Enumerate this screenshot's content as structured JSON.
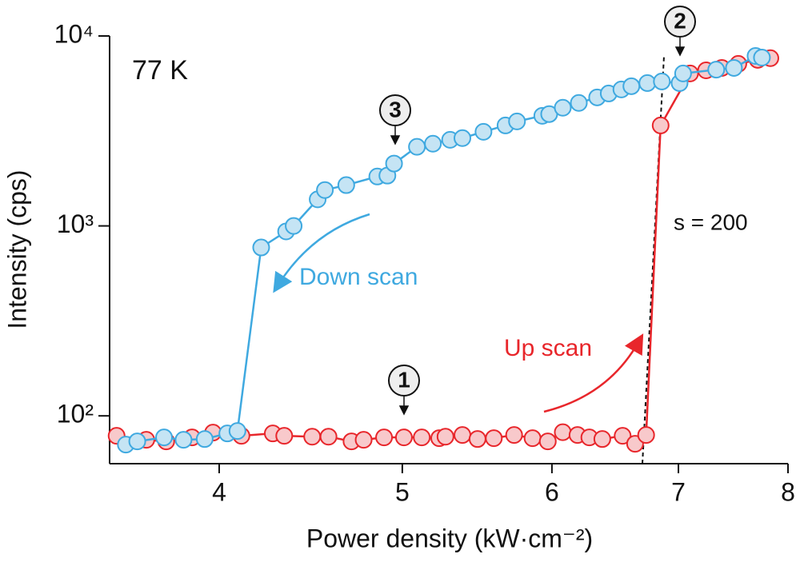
{
  "chart_data": {
    "type": "scatter",
    "x_label": "Power density (kW·cm⁻²)",
    "y_label": "Intensity (cps)",
    "xlog": true,
    "ylog": true,
    "xlim": [
      3.5,
      8
    ],
    "ylim": [
      56,
      10000
    ],
    "xticks": [
      4,
      5,
      6,
      7,
      8
    ],
    "yticks": [
      {
        "value": 100,
        "label": "10²"
      },
      {
        "value": 1000,
        "label": "10³"
      },
      {
        "value": 10000,
        "label": "10⁴"
      }
    ],
    "annotations": [
      "77 K",
      "s = 200",
      "1",
      "2",
      "3"
    ],
    "series": [
      {
        "name": "Up scan",
        "color": "#e8262b",
        "fill": "#f8c9cb",
        "x": [
          3.53,
          3.66,
          3.75,
          3.87,
          3.97,
          4.11,
          4.27,
          4.33,
          4.48,
          4.57,
          4.7,
          4.77,
          4.89,
          5.01,
          5.12,
          5.23,
          5.27,
          5.38,
          5.48,
          5.59,
          5.73,
          5.86,
          5.97,
          6.08,
          6.19,
          6.28,
          6.38,
          6.54,
          6.64,
          6.73,
          6.85,
          7.1,
          7.24,
          7.38,
          7.53,
          7.71,
          7.83
        ],
        "values": [
          78.5,
          74.8,
          73.4,
          77,
          81.6,
          78.5,
          80.8,
          78.5,
          77.7,
          77.7,
          73.4,
          74.8,
          77,
          77,
          77,
          76.3,
          77.7,
          79.3,
          75.5,
          76.3,
          79.3,
          76.3,
          73.4,
          82,
          79.3,
          77,
          75.5,
          78.5,
          71.3,
          79.3,
          3380,
          6350,
          6590,
          6790,
          7130,
          7490,
          7640
        ]
      },
      {
        "name": "Down scan",
        "color": "#3fa9e0",
        "fill": "#c5e4f4",
        "x": [
          3.57,
          3.62,
          3.74,
          3.83,
          3.93,
          4.04,
          4.09,
          4.21,
          4.34,
          4.38,
          4.51,
          4.55,
          4.67,
          4.85,
          4.91,
          4.95,
          5.09,
          5.19,
          5.3,
          5.38,
          5.52,
          5.67,
          5.75,
          5.93,
          5.98,
          6.08,
          6.2,
          6.34,
          6.43,
          6.53,
          6.61,
          6.74,
          6.86,
          7.01,
          7.04,
          7.33,
          7.49,
          7.69,
          7.75
        ],
        "values": [
          70.6,
          73.4,
          77,
          74.8,
          75.5,
          80.8,
          83.2,
          770,
          935,
          1000,
          1380,
          1545,
          1640,
          1820,
          1840,
          2130,
          2610,
          2710,
          2840,
          2900,
          3130,
          3380,
          3550,
          3800,
          3880,
          4190,
          4440,
          4750,
          4980,
          5230,
          5440,
          5650,
          5760,
          5650,
          6350,
          6650,
          6790,
          7850,
          7700
        ]
      }
    ]
  }
}
